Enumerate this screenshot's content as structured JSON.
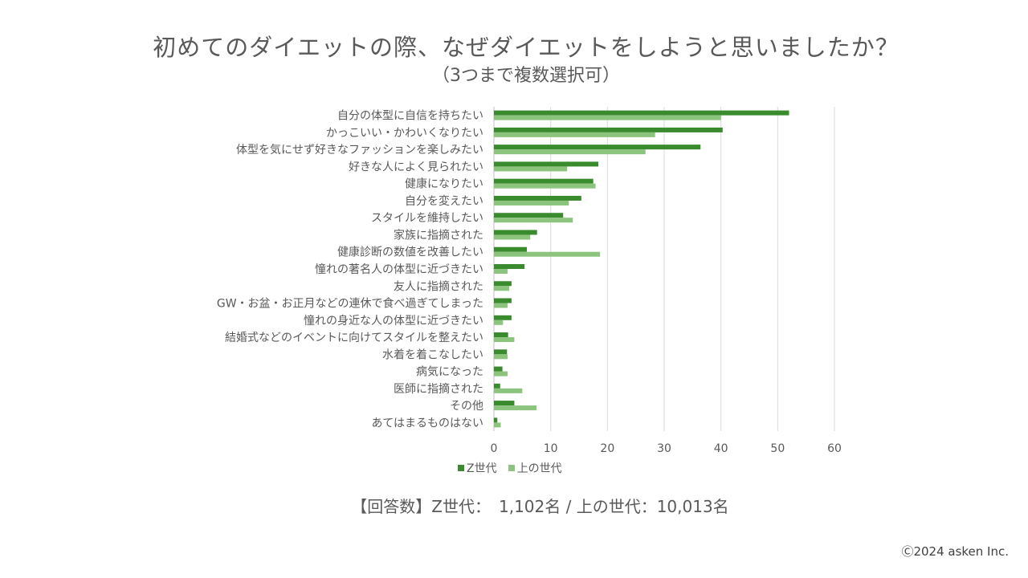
{
  "chart_data": {
    "type": "bar",
    "orientation": "horizontal",
    "title": "初めてのダイエットの際、なぜダイエットをしようと思いましたか？",
    "subtitle": "（3つまで複数選択可）",
    "categories": [
      "自分の体型に自信を持ちたい",
      "かっこいい・かわいくなりたい",
      "体型を気にせず好きなファッションを楽しみたい",
      "好きな人によく見られたい",
      "健康になりたい",
      "自分を変えたい",
      "スタイルを維持したい",
      "家族に指摘された",
      "健康診断の数値を改善したい",
      "憧れの著名人の体型に近づきたい",
      "友人に指摘された",
      "GW・お盆・お正月などの連休で食べ過ぎてしまった",
      "憧れの身近な人の体型に近づきたい",
      "結婚式などのイベントに向けてスタイルを整えたい",
      "水着を着こなしたい",
      "病気になった",
      "医師に指摘された",
      "その他",
      "あてはまるものはない"
    ],
    "series": [
      {
        "name": "Z世代",
        "color": "#3A8A2E",
        "values": [
          52.0,
          40.3,
          36.4,
          18.4,
          17.5,
          15.4,
          12.2,
          7.6,
          5.8,
          5.4,
          3.1,
          3.1,
          3.1,
          2.5,
          2.3,
          1.5,
          1.1,
          3.6,
          0.6
        ]
      },
      {
        "name": "上の世代",
        "color": "#8CC47E",
        "values": [
          40.0,
          28.4,
          26.7,
          12.9,
          17.9,
          13.2,
          13.9,
          6.4,
          18.7,
          2.4,
          2.7,
          2.4,
          1.6,
          3.6,
          2.4,
          2.4,
          5.0,
          7.5,
          1.2
        ]
      }
    ],
    "xlim": [
      0,
      60
    ],
    "xticks": [
      0,
      10,
      20,
      30,
      40,
      50,
      60
    ],
    "xtick_labels": [
      "0",
      "10",
      "20",
      "30",
      "40",
      "50",
      "60"
    ],
    "grid": true,
    "legend_position": "bottom-left"
  },
  "legend": {
    "z_label": "Z世代",
    "upper_label": "上の世代"
  },
  "footnote": "【回答数】Z世代：　1,102名 / 上の世代：10,013名",
  "copyright": "Ⓒ2024 asken Inc."
}
